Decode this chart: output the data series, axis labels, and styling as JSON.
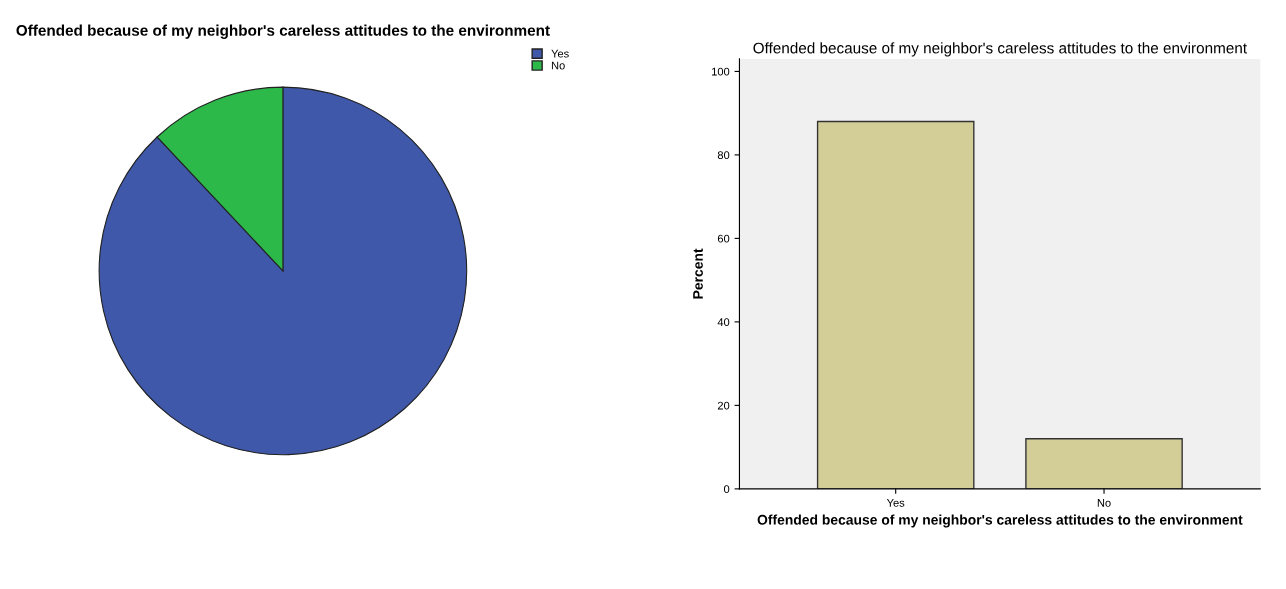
{
  "chart_data": [
    {
      "type": "pie",
      "title": "Offended because of my neighbor's careless attitudes to the environment",
      "categories": [
        "Yes",
        "No"
      ],
      "values": [
        88,
        12
      ],
      "colors": [
        "#3f58aa",
        "#2db84a"
      ],
      "legend": "top right"
    },
    {
      "type": "bar",
      "title": "Offended because of my neighbor's careless attitudes to the environment",
      "xlabel": "Offended because of my neighbor's careless attitudes to the environment",
      "ylabel": "Percent",
      "categories": [
        "Yes",
        "No"
      ],
      "values": [
        88,
        12
      ],
      "color": "#d3ce98",
      "ylim": [
        0,
        103
      ],
      "yticks": [
        0,
        20,
        40,
        60,
        80,
        100
      ],
      "grid": false
    }
  ]
}
